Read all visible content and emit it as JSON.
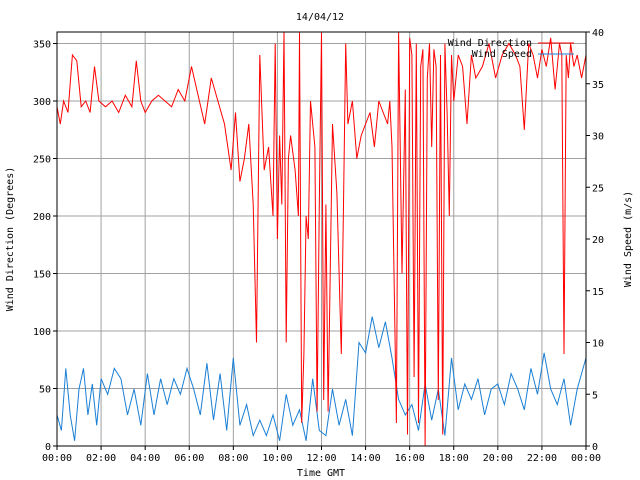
{
  "chart_data": {
    "type": "line",
    "title": "14/04/12",
    "xlabel": "Time GMT",
    "ylabel": "Wind Direction (Degrees)",
    "y2label": "Wind Speed (m/s)",
    "xlim": [
      0,
      24
    ],
    "ylim": [
      0,
      360
    ],
    "y2lim": [
      0,
      40
    ],
    "x_tick_labels": [
      "00:00",
      "02:00",
      "04:00",
      "06:00",
      "08:00",
      "10:00",
      "12:00",
      "14:00",
      "16:00",
      "18:00",
      "20:00",
      "22:00",
      "00:00"
    ],
    "y_tick_labels": [
      "0",
      "50",
      "100",
      "150",
      "200",
      "250",
      "300",
      "350"
    ],
    "y_ticks": [
      0,
      50,
      100,
      150,
      200,
      250,
      300,
      350
    ],
    "y2_tick_labels": [
      "0",
      "5",
      "10",
      "15",
      "20",
      "25",
      "30",
      "35",
      "40"
    ],
    "y2_ticks": [
      0,
      5,
      10,
      15,
      20,
      25,
      30,
      35,
      40
    ],
    "grid": true,
    "legend_position": "top-right",
    "series": [
      {
        "name": "Wind Direction",
        "axis": "left",
        "color": "#ff0000",
        "x": [
          0,
          0.15,
          0.3,
          0.5,
          0.7,
          0.9,
          1.1,
          1.3,
          1.5,
          1.7,
          1.9,
          2.2,
          2.5,
          2.8,
          3.1,
          3.4,
          3.6,
          3.8,
          4.0,
          4.3,
          4.6,
          4.9,
          5.2,
          5.5,
          5.8,
          6.1,
          6.4,
          6.7,
          7.0,
          7.3,
          7.6,
          7.9,
          8.1,
          8.3,
          8.5,
          8.7,
          8.9,
          9.05,
          9.2,
          9.4,
          9.6,
          9.8,
          9.9,
          10.0,
          10.1,
          10.2,
          10.3,
          10.4,
          10.5,
          10.6,
          10.8,
          10.95,
          11.0,
          11.1,
          11.2,
          11.3,
          11.4,
          11.5,
          11.7,
          11.8,
          11.9,
          12.0,
          12.1,
          12.2,
          12.3,
          12.5,
          12.7,
          12.9,
          13.0,
          13.1,
          13.2,
          13.4,
          13.6,
          13.8,
          14.0,
          14.2,
          14.4,
          14.6,
          14.8,
          15.0,
          15.1,
          15.2,
          15.4,
          15.5,
          15.65,
          15.8,
          15.9,
          16.0,
          16.1,
          16.2,
          16.3,
          16.4,
          16.5,
          16.6,
          16.7,
          16.8,
          16.9,
          17.0,
          17.1,
          17.2,
          17.3,
          17.4,
          17.5,
          17.6,
          17.7,
          17.8,
          17.9,
          18.0,
          18.2,
          18.4,
          18.6,
          18.8,
          19.0,
          19.3,
          19.6,
          19.9,
          20.2,
          20.5,
          20.8,
          21.0,
          21.2,
          21.4,
          21.6,
          21.8,
          22.0,
          22.2,
          22.4,
          22.6,
          22.8,
          22.9,
          23.0,
          23.1,
          23.2,
          23.3,
          23.45,
          23.6,
          23.8,
          24.0
        ],
        "values": [
          295,
          280,
          300,
          290,
          340,
          335,
          295,
          300,
          290,
          330,
          300,
          295,
          300,
          290,
          305,
          295,
          335,
          300,
          290,
          300,
          305,
          300,
          295,
          310,
          300,
          330,
          305,
          280,
          320,
          300,
          280,
          240,
          290,
          230,
          250,
          280,
          210,
          90,
          340,
          240,
          260,
          200,
          350,
          180,
          270,
          210,
          360,
          90,
          250,
          270,
          240,
          200,
          360,
          20,
          80,
          200,
          180,
          300,
          260,
          30,
          210,
          360,
          40,
          210,
          30,
          280,
          220,
          80,
          210,
          350,
          280,
          300,
          250,
          270,
          280,
          290,
          260,
          300,
          290,
          280,
          300,
          260,
          20,
          360,
          150,
          310,
          10,
          355,
          340,
          60,
          350,
          20,
          330,
          345,
          0,
          320,
          350,
          260,
          345,
          330,
          40,
          340,
          10,
          350,
          290,
          200,
          340,
          300,
          340,
          330,
          280,
          340,
          320,
          330,
          350,
          320,
          340,
          350,
          340,
          330,
          275,
          350,
          340,
          320,
          345,
          330,
          355,
          310,
          350,
          340,
          80,
          340,
          320,
          350,
          330,
          340,
          320,
          340
        ]
      },
      {
        "name": "Wind Speed",
        "axis": "right",
        "color": "#1a7fd4",
        "x": [
          0,
          0.2,
          0.4,
          0.6,
          0.8,
          1.0,
          1.2,
          1.4,
          1.6,
          1.8,
          2.0,
          2.3,
          2.6,
          2.9,
          3.2,
          3.5,
          3.8,
          4.1,
          4.4,
          4.7,
          5.0,
          5.3,
          5.6,
          5.9,
          6.2,
          6.5,
          6.8,
          7.1,
          7.4,
          7.7,
          8.0,
          8.3,
          8.6,
          8.9,
          9.2,
          9.5,
          9.8,
          10.1,
          10.4,
          10.7,
          11.0,
          11.3,
          11.6,
          11.9,
          12.2,
          12.5,
          12.8,
          13.1,
          13.4,
          13.7,
          14.0,
          14.3,
          14.6,
          14.9,
          15.2,
          15.5,
          15.8,
          16.1,
          16.4,
          16.7,
          17.0,
          17.3,
          17.6,
          17.9,
          18.2,
          18.5,
          18.8,
          19.1,
          19.4,
          19.7,
          20.0,
          20.3,
          20.6,
          20.9,
          21.2,
          21.5,
          21.8,
          22.1,
          22.4,
          22.7,
          23.0,
          23.3,
          23.6,
          24.0
        ],
        "values": [
          3.0,
          1.5,
          7.5,
          3.0,
          0.5,
          5.5,
          7.5,
          3.0,
          6.0,
          2.0,
          6.5,
          5.0,
          7.5,
          6.5,
          3.0,
          5.5,
          2.0,
          7.0,
          3.0,
          6.5,
          4.0,
          6.5,
          5.0,
          7.5,
          5.5,
          3.0,
          8.0,
          2.5,
          7.0,
          1.5,
          8.5,
          2.0,
          4.0,
          1.0,
          2.5,
          1.0,
          3.0,
          0.5,
          5.0,
          2.0,
          3.5,
          0.5,
          6.5,
          1.5,
          1.0,
          5.5,
          2.0,
          4.5,
          1.0,
          10.0,
          9.0,
          12.5,
          9.5,
          12.0,
          8.5,
          4.5,
          3.0,
          4.0,
          1.5,
          6.0,
          2.5,
          5.5,
          1.0,
          8.5,
          3.5,
          6.0,
          4.5,
          6.5,
          3.0,
          5.5,
          6.0,
          4.0,
          7.0,
          5.5,
          3.5,
          7.5,
          5.0,
          9.0,
          5.5,
          4.0,
          6.5,
          2.0,
          5.5,
          8.5
        ]
      }
    ]
  }
}
